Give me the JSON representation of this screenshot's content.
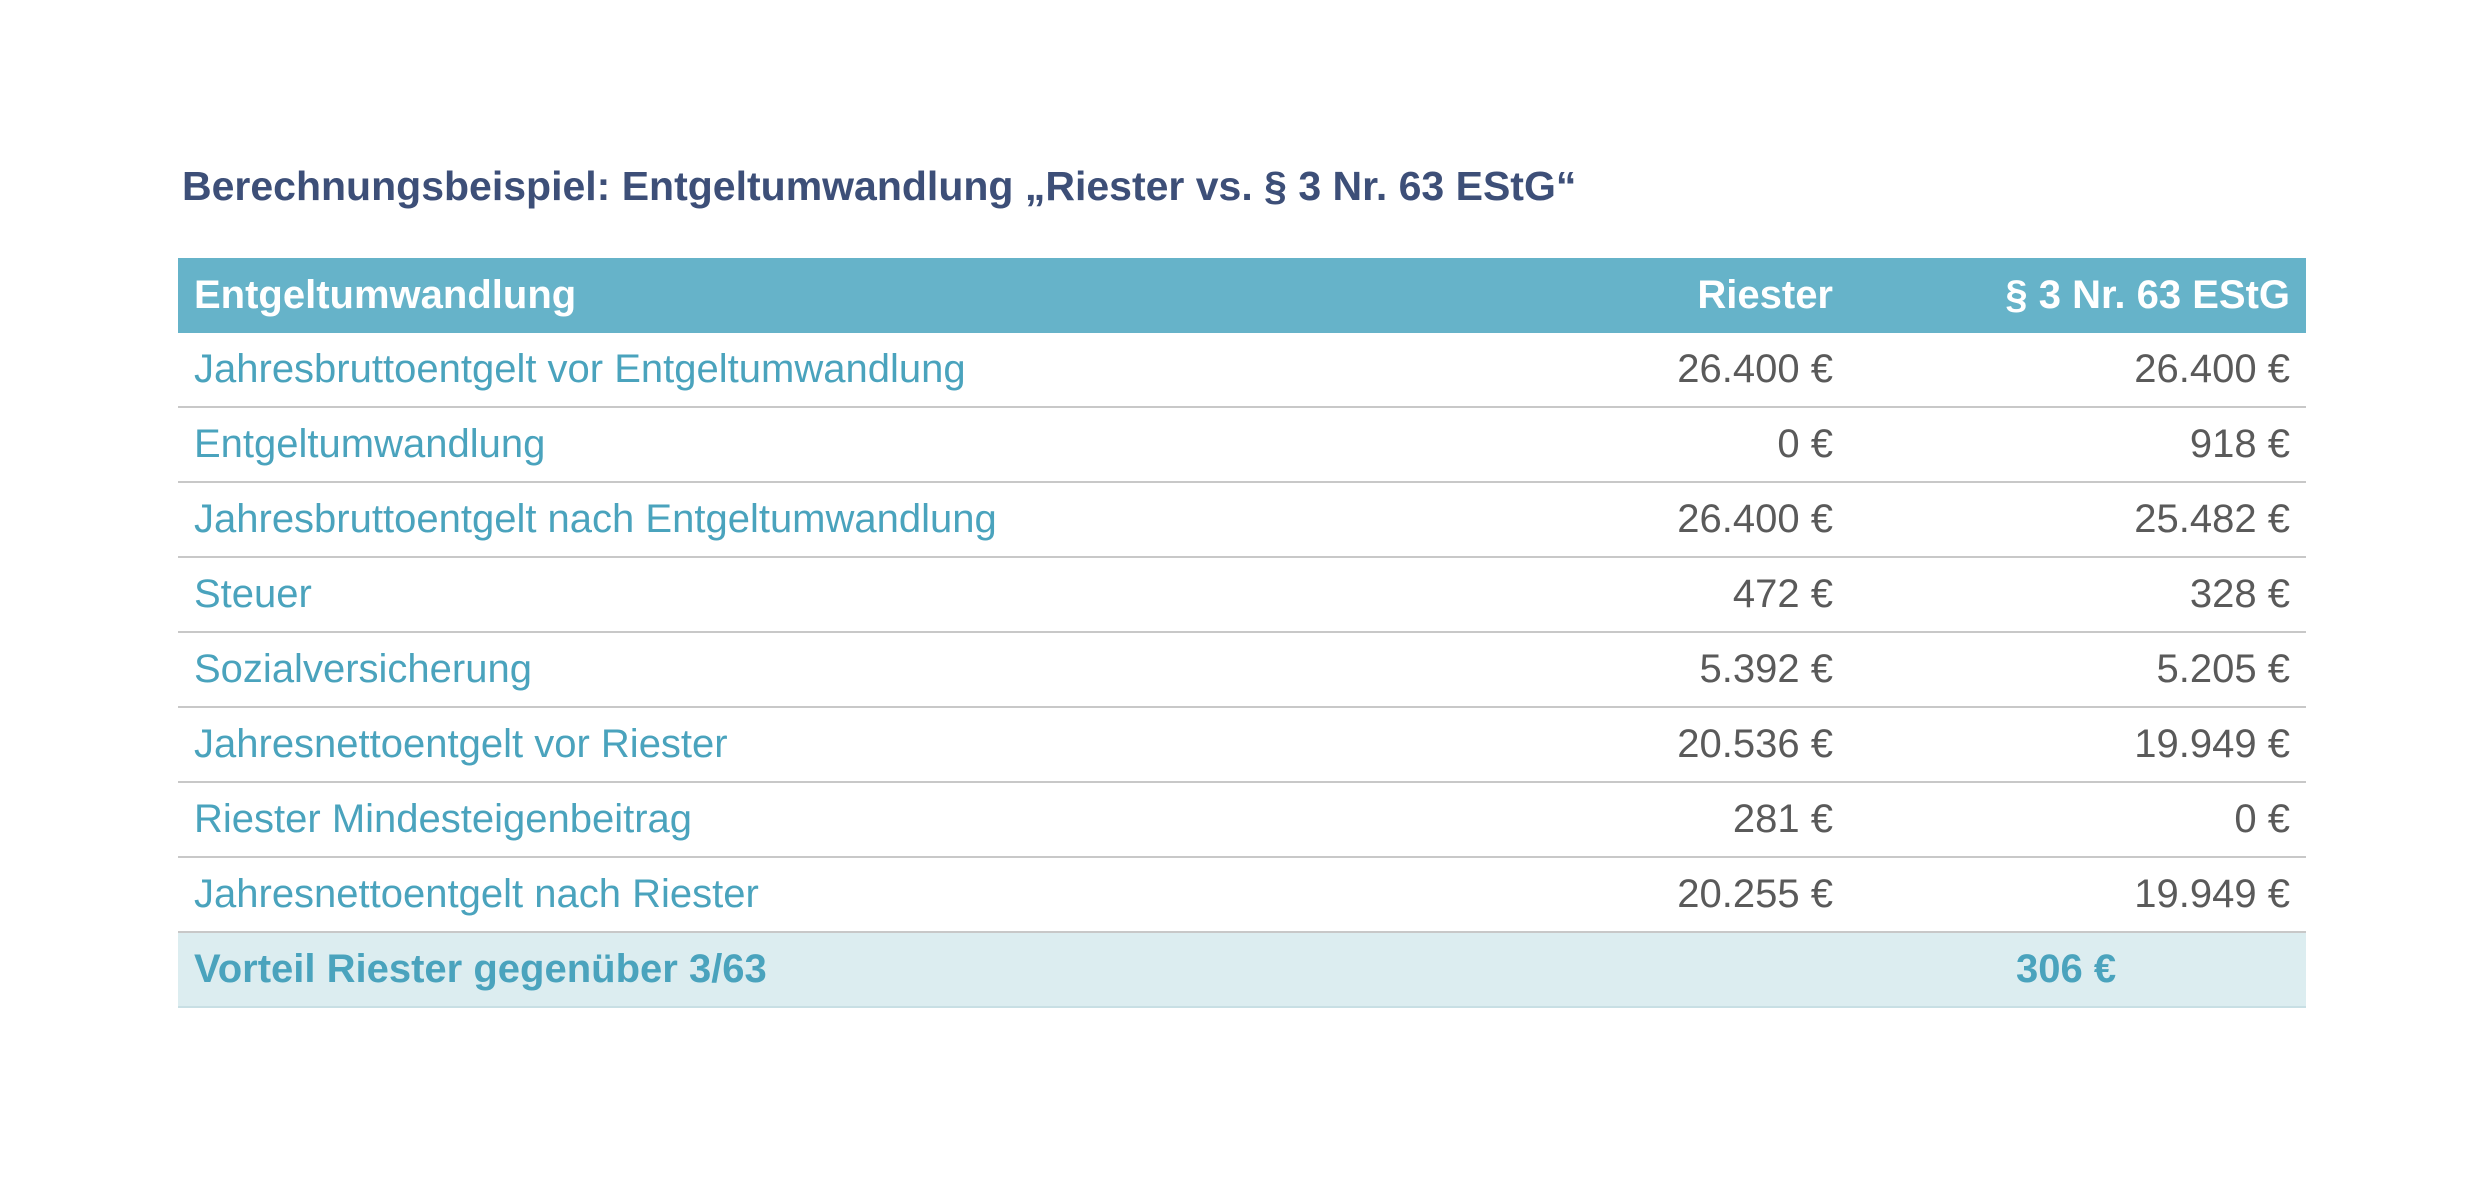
{
  "title": "Berechnungsbeispiel: Entgeltumwandlung „Riester vs. § 3 Nr. 63 EStG“",
  "table": {
    "headers": {
      "label": "Entgeltumwandlung",
      "col_a": "Riester",
      "col_b": "§ 3 Nr. 63 EStG"
    },
    "rows": [
      {
        "label": "Jahresbruttoentgelt vor Entgeltumwandlung",
        "a": "26.400 €",
        "b": "26.400 €"
      },
      {
        "label": "Entgeltumwandlung",
        "a": "0 €",
        "b": "918 €"
      },
      {
        "label": "Jahresbruttoentgelt nach Entgeltumwandlung",
        "a": "26.400 €",
        "b": "25.482 €"
      },
      {
        "label": "Steuer",
        "a": "472 €",
        "b": "328 €"
      },
      {
        "label": "Sozialversicherung",
        "a": "5.392 €",
        "b": "5.205 €"
      },
      {
        "label": "Jahresnettoentgelt vor Riester",
        "a": "20.536 €",
        "b": "19.949 €"
      },
      {
        "label": "Riester Mindesteigenbeitrag",
        "a": "281 €",
        "b": "0 €"
      },
      {
        "label": "Jahresnettoentgelt nach Riester",
        "a": "20.255 €",
        "b": "19.949 €"
      }
    ],
    "footer": {
      "label": "Vorteil Riester gegenüber 3/63",
      "value": "306 €"
    }
  },
  "colors": {
    "title": "#3d4f78",
    "header_bg": "#66b3c9",
    "label_text": "#4aa3bd",
    "value_text": "#5a5a5a",
    "footer_bg": "#dcedf0"
  }
}
